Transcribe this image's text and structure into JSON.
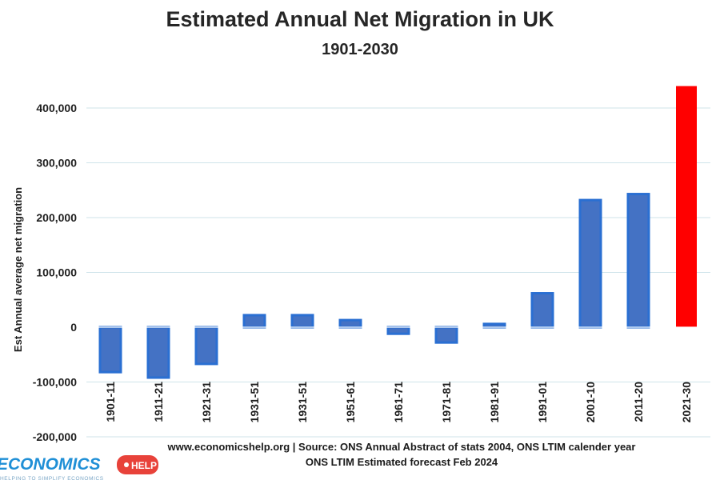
{
  "chart_data": {
    "type": "bar",
    "title": "Estimated Annual Net Migration in UK",
    "subtitle": "1901-2030",
    "ylabel": "Est Annual average net migration",
    "xlabel": "",
    "ylim": [
      -200000,
      400000
    ],
    "yticks": [
      400000,
      300000,
      200000,
      100000,
      0,
      -100000,
      -200000
    ],
    "ytick_labels": [
      "400,000",
      "300,000",
      "200,000",
      "100,000",
      "0",
      "-100,000",
      "-200,000"
    ],
    "grid": true,
    "categories": [
      "1901-11",
      "1911-21",
      "1921-31",
      "1931-51",
      "1931-51",
      "1951-61",
      "1961-71",
      "1971-81",
      "1981-91",
      "1991-01",
      "2001-10",
      "2011-20",
      "2021-30"
    ],
    "values": [
      -82000,
      -92000,
      -67000,
      22000,
      22000,
      13000,
      -12000,
      -28000,
      6000,
      62000,
      232000,
      243000,
      440000
    ],
    "colors": {
      "bar_fill": "#4472c4",
      "bar_edge": "#2a6fd2",
      "forecast_fill": "#ff0000",
      "gridline": "#cfe3ea"
    }
  },
  "source": {
    "line1": "www.economicshelp.org  | Source: ONS Annual Abstract of stats 2004, ONS LTIM calender year",
    "line2": "ONS LTIM  Estimated forecast Feb 2024"
  },
  "logo": {
    "main": "ECONOMICS",
    "badge": "HELP",
    "tagline": "HELPING TO SIMPLIFY ECONOMICS"
  }
}
